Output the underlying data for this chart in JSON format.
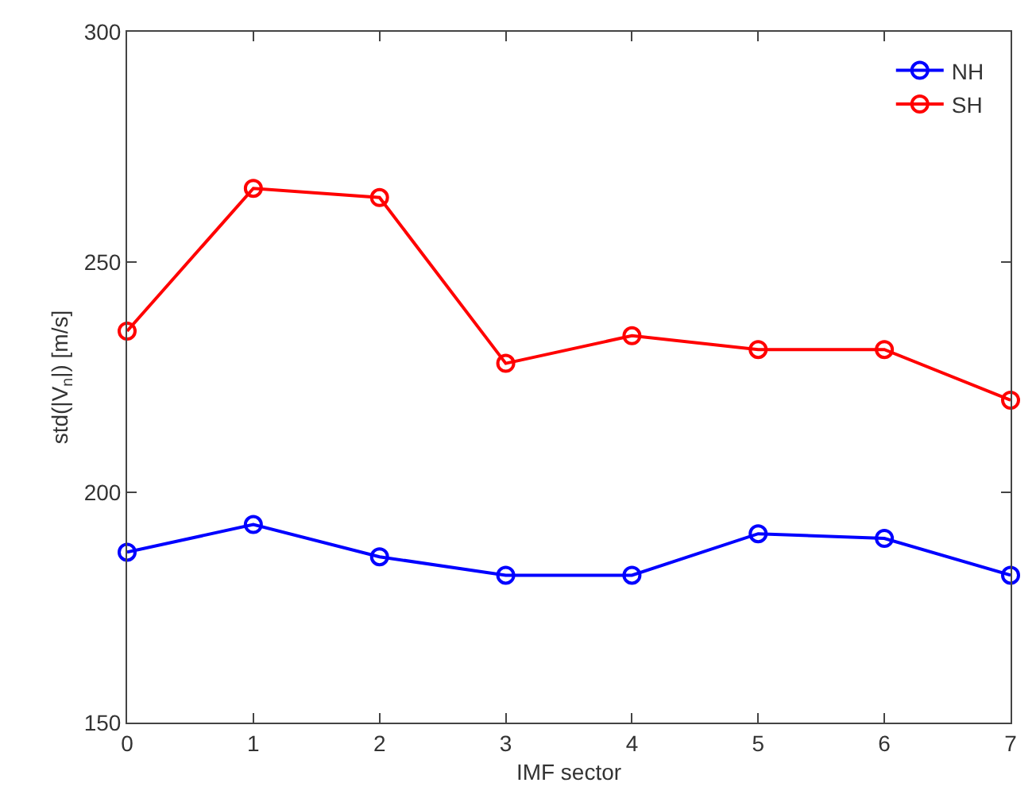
{
  "chart_data": {
    "type": "line",
    "xlabel": "IMF sector",
    "ylabel": "std(|V$_{n}$|) [m/s]",
    "x": [
      0,
      1,
      2,
      3,
      4,
      5,
      6,
      7
    ],
    "series": [
      {
        "name": "NH",
        "color": "#0000ff",
        "values": [
          187,
          193,
          186,
          182,
          182,
          191,
          190,
          182
        ]
      },
      {
        "name": "SH",
        "color": "#ff0000",
        "values": [
          235,
          266,
          264,
          228,
          234,
          231,
          231,
          220
        ]
      }
    ],
    "xlim": [
      0,
      7
    ],
    "xticks": [
      0,
      1,
      2,
      3,
      4,
      5,
      6,
      7
    ],
    "ylim": [
      150,
      300
    ],
    "yticks": [
      150,
      200,
      250,
      300
    ],
    "grid": false,
    "legend": "top right",
    "marker": "circle",
    "line_style": "solid"
  }
}
